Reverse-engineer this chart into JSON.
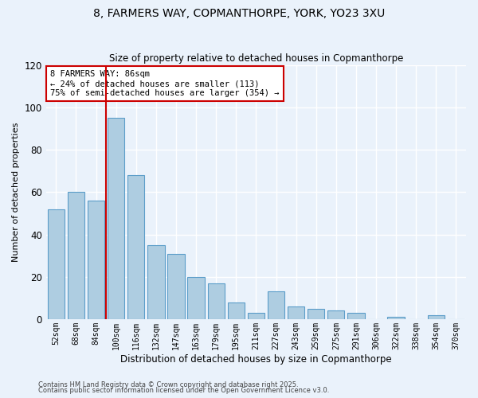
{
  "title1": "8, FARMERS WAY, COPMANTHORPE, YORK, YO23 3XU",
  "title2": "Size of property relative to detached houses in Copmanthorpe",
  "xlabel": "Distribution of detached houses by size in Copmanthorpe",
  "ylabel": "Number of detached properties",
  "bar_labels": [
    "52sqm",
    "68sqm",
    "84sqm",
    "100sqm",
    "116sqm",
    "132sqm",
    "147sqm",
    "163sqm",
    "179sqm",
    "195sqm",
    "211sqm",
    "227sqm",
    "243sqm",
    "259sqm",
    "275sqm",
    "291sqm",
    "306sqm",
    "322sqm",
    "338sqm",
    "354sqm",
    "370sqm"
  ],
  "bar_values": [
    52,
    60,
    56,
    95,
    68,
    35,
    31,
    20,
    17,
    8,
    3,
    13,
    6,
    5,
    4,
    3,
    0,
    1,
    0,
    2,
    0
  ],
  "bar_color": "#aecde1",
  "bar_edgecolor": "#5b9dc9",
  "bg_color": "#eaf2fb",
  "grid_color": "#ffffff",
  "vline_x": 2.5,
  "vline_color": "#cc0000",
  "annotation_title": "8 FARMERS WAY: 86sqm",
  "annotation_line1": "← 24% of detached houses are smaller (113)",
  "annotation_line2": "75% of semi-detached houses are larger (354) →",
  "annotation_box_edgecolor": "#cc0000",
  "ylim": [
    0,
    120
  ],
  "yticks": [
    0,
    20,
    40,
    60,
    80,
    100,
    120
  ],
  "footer1": "Contains HM Land Registry data © Crown copyright and database right 2025.",
  "footer2": "Contains public sector information licensed under the Open Government Licence v3.0."
}
